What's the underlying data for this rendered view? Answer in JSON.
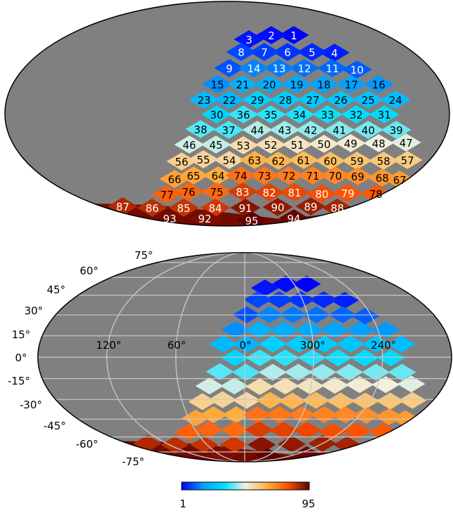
{
  "chart_data": [
    {
      "type": "heatmap",
      "projection": "mollweide",
      "title": "",
      "pixels": [
        {
          "id": "1",
          "value": 1
        },
        {
          "id": "2",
          "value": 2
        },
        {
          "id": "3",
          "value": 3
        },
        {
          "id": "4",
          "value": 4
        },
        {
          "id": "5",
          "value": 5
        },
        {
          "id": "6",
          "value": 6
        },
        {
          "id": "7",
          "value": 7
        },
        {
          "id": "8",
          "value": 8
        },
        {
          "id": "9",
          "value": 9
        },
        {
          "id": "10",
          "value": 10
        },
        {
          "id": "11",
          "value": 11
        },
        {
          "id": "12",
          "value": 12
        },
        {
          "id": "13",
          "value": 13
        },
        {
          "id": "14",
          "value": 14
        },
        {
          "id": "15",
          "value": 15
        },
        {
          "id": "16",
          "value": 16
        },
        {
          "id": "17",
          "value": 17
        },
        {
          "id": "18",
          "value": 18
        },
        {
          "id": "19",
          "value": 19
        },
        {
          "id": "20",
          "value": 20
        },
        {
          "id": "21",
          "value": 21
        },
        {
          "id": "22",
          "value": 22
        },
        {
          "id": "23",
          "value": 23
        },
        {
          "id": "24",
          "value": 24
        },
        {
          "id": "25",
          "value": 25
        },
        {
          "id": "26",
          "value": 26
        },
        {
          "id": "27",
          "value": 27
        },
        {
          "id": "28",
          "value": 28
        },
        {
          "id": "29",
          "value": 29
        },
        {
          "id": "30",
          "value": 30
        },
        {
          "id": "31",
          "value": 31
        },
        {
          "id": "32",
          "value": 32
        },
        {
          "id": "33",
          "value": 33
        },
        {
          "id": "34",
          "value": 34
        },
        {
          "id": "35",
          "value": 35
        },
        {
          "id": "36",
          "value": 36
        },
        {
          "id": "37",
          "value": 37
        },
        {
          "id": "38",
          "value": 38
        },
        {
          "id": "39",
          "value": 39
        },
        {
          "id": "40",
          "value": 40
        },
        {
          "id": "41",
          "value": 41
        },
        {
          "id": "42",
          "value": 42
        },
        {
          "id": "43",
          "value": 43
        },
        {
          "id": "44",
          "value": 44
        },
        {
          "id": "45",
          "value": 45
        },
        {
          "id": "46",
          "value": 46
        },
        {
          "id": "47",
          "value": 47
        },
        {
          "id": "48",
          "value": 48
        },
        {
          "id": "49",
          "value": 49
        },
        {
          "id": "50",
          "value": 50
        },
        {
          "id": "51",
          "value": 51
        },
        {
          "id": "52",
          "value": 52
        },
        {
          "id": "53",
          "value": 53
        },
        {
          "id": "54",
          "value": 54
        },
        {
          "id": "55",
          "value": 55
        },
        {
          "id": "56",
          "value": 56
        },
        {
          "id": "57",
          "value": 57
        },
        {
          "id": "58",
          "value": 58
        },
        {
          "id": "59",
          "value": 59
        },
        {
          "id": "60",
          "value": 60
        },
        {
          "id": "61",
          "value": 61
        },
        {
          "id": "62",
          "value": 62
        },
        {
          "id": "63",
          "value": 63
        },
        {
          "id": "64",
          "value": 64
        },
        {
          "id": "65",
          "value": 65
        },
        {
          "id": "66",
          "value": 66
        },
        {
          "id": "67",
          "value": 67
        },
        {
          "id": "68",
          "value": 68
        },
        {
          "id": "69",
          "value": 69
        },
        {
          "id": "70",
          "value": 70
        },
        {
          "id": "71",
          "value": 71
        },
        {
          "id": "72",
          "value": 72
        },
        {
          "id": "73",
          "value": 73
        },
        {
          "id": "74",
          "value": 74
        },
        {
          "id": "75",
          "value": 75
        },
        {
          "id": "76",
          "value": 76
        },
        {
          "id": "77",
          "value": 77
        },
        {
          "id": "78",
          "value": 78
        },
        {
          "id": "79",
          "value": 79
        },
        {
          "id": "80",
          "value": 80
        },
        {
          "id": "81",
          "value": 81
        },
        {
          "id": "82",
          "value": 82
        },
        {
          "id": "83",
          "value": 83
        },
        {
          "id": "84",
          "value": 84
        },
        {
          "id": "85",
          "value": 85
        },
        {
          "id": "86",
          "value": 86
        },
        {
          "id": "87",
          "value": 87
        },
        {
          "id": "88",
          "value": 88
        },
        {
          "id": "89",
          "value": 89
        },
        {
          "id": "90",
          "value": 90
        },
        {
          "id": "91",
          "value": 91
        },
        {
          "id": "92",
          "value": 92
        },
        {
          "id": "93",
          "value": 93
        },
        {
          "id": "94",
          "value": 94
        },
        {
          "id": "95",
          "value": 95
        }
      ],
      "background_color": "#808080"
    },
    {
      "type": "heatmap",
      "projection": "mollweide",
      "title": "",
      "grid": true,
      "lat_ticks": [
        "75°",
        "60°",
        "45°",
        "30°",
        "15°",
        "0°",
        "-15°",
        "-30°",
        "-45°",
        "-60°",
        "-75°"
      ],
      "lon_ticks": [
        "120°",
        "60°",
        "0°",
        "300°",
        "240°"
      ],
      "background_color": "#808080"
    }
  ],
  "colorbar": {
    "min_label": "1",
    "max_label": "95",
    "vmin": 1,
    "vmax": 95,
    "colors": [
      "#0000ff",
      "#00a0ff",
      "#00e0ff",
      "#f0f0e0",
      "#ffb040",
      "#ff5000",
      "#600000"
    ]
  }
}
